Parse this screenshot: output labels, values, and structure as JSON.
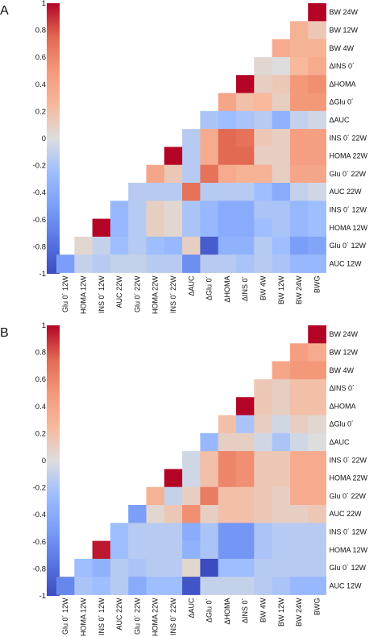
{
  "colors": {
    "scale_min": "#3b4cc0",
    "scale_mid": "#dddddd",
    "scale_max": "#b40426"
  },
  "chart_data": [
    {
      "panel_label": "A",
      "type": "heatmap",
      "colormap": "coolwarm",
      "vmin": -1,
      "vmax": 1,
      "colorbar_ticks": [
        "1",
        "0.8",
        "0.6",
        "0.4",
        "0.2",
        "0",
        "-0.2",
        "-0.4",
        "-0.6",
        "-0.8",
        "-1"
      ],
      "x_labels": [
        "Glu 0´ 12W",
        "HOMA 12W",
        "INS 0´ 12W",
        "AUC 22W",
        "Glu 0´ 22W",
        "HOMA 22W",
        "INS 0´ 22W",
        "ΔAUC",
        "ΔGlu 0´",
        "ΔHOMA",
        "ΔINS 0´",
        "BW 4W",
        "BW 12W",
        "BW 24W",
        "BWG"
      ],
      "y_labels": [
        "BW 24W",
        "BW 12W",
        "BW 4W",
        "ΔINS 0´",
        "ΔHOMA",
        "ΔGlu 0´",
        "ΔAUC",
        "INS 0´ 22W",
        "HOMA 22W",
        "Glu 0´ 22W",
        "AUC 22W",
        "INS 0´ 12W",
        "HOMA 12W",
        "Glu 0´ 12W",
        "AUC 12W"
      ],
      "matrix": [
        [
          null,
          null,
          null,
          null,
          null,
          null,
          null,
          null,
          null,
          null,
          null,
          null,
          null,
          null,
          1.0
        ],
        [
          null,
          null,
          null,
          null,
          null,
          null,
          null,
          null,
          null,
          null,
          null,
          null,
          null,
          0.3,
          0.15
        ],
        [
          null,
          null,
          null,
          null,
          null,
          null,
          null,
          null,
          null,
          null,
          null,
          null,
          0.35,
          0.3,
          0.3
        ],
        [
          null,
          null,
          null,
          null,
          null,
          null,
          null,
          null,
          null,
          null,
          null,
          0.05,
          0.0,
          0.25,
          0.35
        ],
        [
          null,
          null,
          null,
          null,
          null,
          null,
          null,
          null,
          null,
          null,
          1.0,
          0.1,
          0.15,
          0.5,
          0.55
        ],
        [
          null,
          null,
          null,
          null,
          null,
          null,
          null,
          null,
          null,
          0.4,
          0.2,
          0.25,
          0.1,
          0.5,
          0.5
        ],
        [
          null,
          null,
          null,
          null,
          null,
          null,
          null,
          null,
          -0.2,
          -0.25,
          -0.2,
          -0.15,
          -0.35,
          -0.1,
          -0.05
        ],
        [
          null,
          null,
          null,
          null,
          null,
          null,
          null,
          -0.15,
          0.35,
          0.75,
          0.7,
          0.15,
          0.1,
          0.45,
          0.45
        ],
        [
          null,
          null,
          null,
          null,
          null,
          null,
          1.0,
          -0.15,
          0.35,
          0.75,
          0.75,
          0.1,
          0.1,
          0.45,
          0.45
        ],
        [
          null,
          null,
          null,
          null,
          null,
          0.4,
          0.15,
          -0.15,
          0.7,
          0.35,
          0.3,
          0.3,
          0.1,
          0.4,
          0.4
        ],
        [
          null,
          null,
          null,
          null,
          -0.15,
          -0.15,
          -0.15,
          0.7,
          -0.15,
          -0.15,
          -0.15,
          -0.25,
          -0.4,
          -0.1,
          -0.05
        ],
        [
          null,
          null,
          null,
          -0.3,
          -0.15,
          0.1,
          0.05,
          -0.2,
          -0.3,
          -0.4,
          -0.4,
          -0.2,
          -0.2,
          -0.3,
          -0.25
        ],
        [
          null,
          null,
          1.0,
          -0.3,
          -0.15,
          0.1,
          0.05,
          -0.2,
          -0.3,
          -0.4,
          -0.4,
          -0.25,
          -0.2,
          -0.3,
          -0.25
        ],
        [
          null,
          0.05,
          -0.1,
          -0.25,
          -0.15,
          -0.25,
          -0.3,
          0.1,
          -0.9,
          -0.35,
          -0.35,
          -0.15,
          -0.25,
          -0.5,
          -0.45
        ],
        [
          -0.5,
          -0.1,
          -0.15,
          -0.1,
          -0.1,
          -0.15,
          -0.15,
          -0.6,
          -0.15,
          -0.15,
          -0.2,
          -0.15,
          -0.2,
          -0.3,
          -0.3
        ]
      ]
    },
    {
      "panel_label": "B",
      "type": "heatmap",
      "colormap": "coolwarm",
      "vmin": -1,
      "vmax": 1,
      "colorbar_ticks": [
        "1",
        "0.8",
        "0.6",
        "0.4",
        "0.2",
        "0",
        "-0.2",
        "-0.4",
        "-0.6",
        "-0.8",
        "-1"
      ],
      "x_labels": [
        "Glu 0´ 12W",
        "HOMA 12W",
        "INS 0´ 12W",
        "AUC 22W",
        "Glu 0´ 22W",
        "HOMA 22W",
        "INS 0´ 22W",
        "ΔAUC",
        "ΔGlu 0´",
        "ΔHOMA",
        "ΔINS 0´",
        "BW 4W",
        "BW 12W",
        "BW 24W",
        "BWG"
      ],
      "y_labels": [
        "BW 24W",
        "BW 12W",
        "BW 4W",
        "ΔINS 0´",
        "ΔHOMA",
        "ΔGlu 0´",
        "ΔAUC",
        "INS 0´ 22W",
        "HOMA 22W",
        "Glu 0´ 22W",
        "AUC 22W",
        "INS 0´ 12W",
        "HOMA 12W",
        "Glu 0´ 12W",
        "AUC 12W"
      ],
      "matrix": [
        [
          null,
          null,
          null,
          null,
          null,
          null,
          null,
          null,
          null,
          null,
          null,
          null,
          null,
          null,
          1.0
        ],
        [
          null,
          null,
          null,
          null,
          null,
          null,
          null,
          null,
          null,
          null,
          null,
          null,
          null,
          0.45,
          0.35
        ],
        [
          null,
          null,
          null,
          null,
          null,
          null,
          null,
          null,
          null,
          null,
          null,
          null,
          0.4,
          0.5,
          0.5
        ],
        [
          null,
          null,
          null,
          null,
          null,
          null,
          null,
          null,
          null,
          null,
          null,
          0.15,
          0.1,
          0.2,
          0.2
        ],
        [
          null,
          null,
          null,
          null,
          null,
          null,
          null,
          null,
          null,
          null,
          1.0,
          0.15,
          0.1,
          0.2,
          0.2
        ],
        [
          null,
          null,
          null,
          null,
          null,
          null,
          null,
          null,
          null,
          0.2,
          -0.2,
          0.1,
          -0.05,
          0.1,
          0.05
        ],
        [
          null,
          null,
          null,
          null,
          null,
          null,
          null,
          null,
          -0.3,
          0.1,
          0.1,
          -0.05,
          -0.2,
          -0.05,
          0.0
        ],
        [
          null,
          null,
          null,
          null,
          null,
          null,
          null,
          -0.05,
          0.2,
          0.6,
          0.55,
          0.15,
          0.15,
          0.35,
          0.35
        ],
        [
          null,
          null,
          null,
          null,
          null,
          null,
          1.0,
          -0.05,
          0.2,
          0.6,
          0.55,
          0.15,
          0.15,
          0.35,
          0.35
        ],
        [
          null,
          null,
          null,
          null,
          null,
          0.3,
          -0.1,
          0.1,
          0.65,
          0.2,
          0.2,
          0.15,
          0.1,
          0.35,
          0.35
        ],
        [
          null,
          null,
          null,
          null,
          -0.5,
          0.05,
          0.15,
          0.55,
          0.1,
          0.2,
          0.2,
          0.15,
          0.1,
          0.1,
          0.15
        ],
        [
          null,
          null,
          null,
          -0.25,
          -0.15,
          -0.15,
          -0.15,
          -0.4,
          -0.2,
          -0.55,
          -0.55,
          -0.2,
          -0.15,
          -0.15,
          -0.15
        ],
        [
          null,
          null,
          0.95,
          -0.25,
          -0.15,
          -0.15,
          -0.15,
          -0.35,
          -0.2,
          -0.55,
          -0.55,
          -0.2,
          -0.15,
          -0.15,
          -0.15
        ],
        [
          null,
          -0.25,
          -0.35,
          -0.15,
          -0.2,
          -0.15,
          -0.15,
          0.05,
          -1.0,
          -0.25,
          -0.25,
          -0.15,
          -0.15,
          -0.15,
          -0.15
        ],
        [
          -0.65,
          -0.2,
          -0.25,
          -0.15,
          -0.4,
          -0.25,
          -0.25,
          -0.95,
          -0.1,
          -0.1,
          -0.1,
          -0.15,
          -0.2,
          -0.3,
          -0.3
        ]
      ]
    }
  ]
}
